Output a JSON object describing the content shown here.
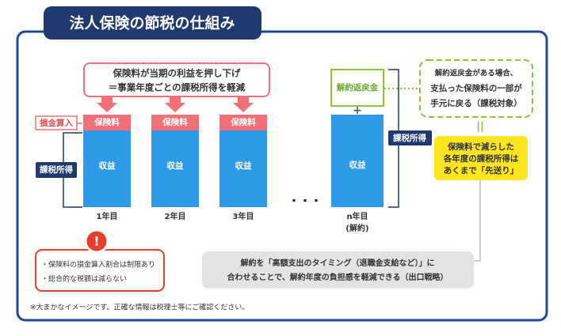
{
  "title": "法人保険の節税の仕組み",
  "top_note": {
    "lines": [
      "保険料が当期の利益を押し下げ",
      "＝事業年度ごとの課税所得を軽減"
    ]
  },
  "left_labels": {
    "deductible": "損金算入",
    "taxable": "課税所得"
  },
  "columns": [
    {
      "premium": "保険料",
      "revenue": "収益",
      "label": "1年目"
    },
    {
      "premium": "保険料",
      "revenue": "収益",
      "label": "2年目"
    },
    {
      "premium": "保険料",
      "revenue": "収益",
      "label": "3年目"
    }
  ],
  "ellipsis": "・・・",
  "final_column": {
    "refund": "解約返戻金",
    "plus": "+",
    "revenue": "収益",
    "label": "n年目",
    "sublabel": "(解約)"
  },
  "right_label": "課税所得",
  "refund_note": {
    "lines": [
      "解約返戻金がある場合、",
      "支払った保険料の一部が",
      "手元に戻る（課税対象）"
    ]
  },
  "equals": "||",
  "deferral_note": {
    "lines": [
      "保険料で減らした",
      "各年度の課税所得は",
      "あくまで「先送り」"
    ]
  },
  "warning": {
    "icon": "!",
    "lines": [
      "・保険料の損金算入割合は制限あり",
      "・総合的な税額は減らない"
    ]
  },
  "exit_note": {
    "lines": [
      "解約を「高額支出のタイミング（退職金支給など）」に",
      "合わせることで、解約年度の負担感を軽減できる（出口戦略）"
    ]
  },
  "footnote": "※大まかなイメージです。正確な情報は税理士等にご確認ください。"
}
